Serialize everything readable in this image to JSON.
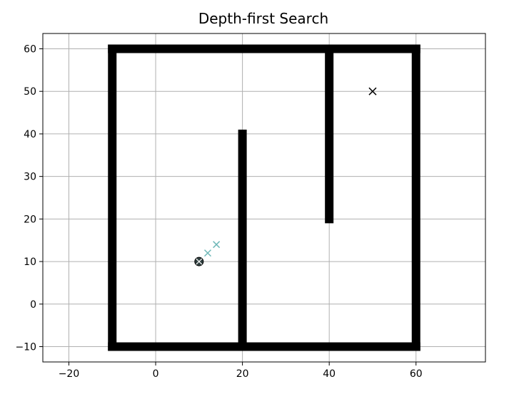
{
  "chart_data": {
    "type": "scatter",
    "title": "Depth-first Search",
    "xlabel": "",
    "ylabel": "",
    "xlim": [
      -26,
      76
    ],
    "ylim": [
      -13.6,
      63.6
    ],
    "xticks": [
      -20,
      0,
      20,
      40,
      60
    ],
    "yticks": [
      -10,
      0,
      10,
      20,
      30,
      40,
      50,
      60
    ],
    "grid": true,
    "obstacles": {
      "marker": "square",
      "color": "#000000",
      "segments": [
        {
          "x": [
            -10,
            60
          ],
          "y": [
            -10,
            -10
          ]
        },
        {
          "x": [
            -10,
            60
          ],
          "y": [
            60,
            60
          ]
        },
        {
          "x": [
            -10,
            -10
          ],
          "y": [
            -10,
            60
          ]
        },
        {
          "x": [
            60,
            60
          ],
          "y": [
            -10,
            60
          ]
        },
        {
          "x": [
            20,
            20
          ],
          "y": [
            -10,
            40
          ]
        },
        {
          "x": [
            40,
            40
          ],
          "y": [
            20,
            60
          ]
        }
      ]
    },
    "start": {
      "x": 10,
      "y": 10,
      "marker": "circle-x",
      "color": "#000000"
    },
    "goal": {
      "x": 50,
      "y": 50,
      "marker": "x",
      "color": "#000000"
    },
    "explored": {
      "marker": "x",
      "color": "#6fb8b8",
      "points": [
        [
          12,
          12
        ],
        [
          14,
          14
        ]
      ]
    }
  }
}
